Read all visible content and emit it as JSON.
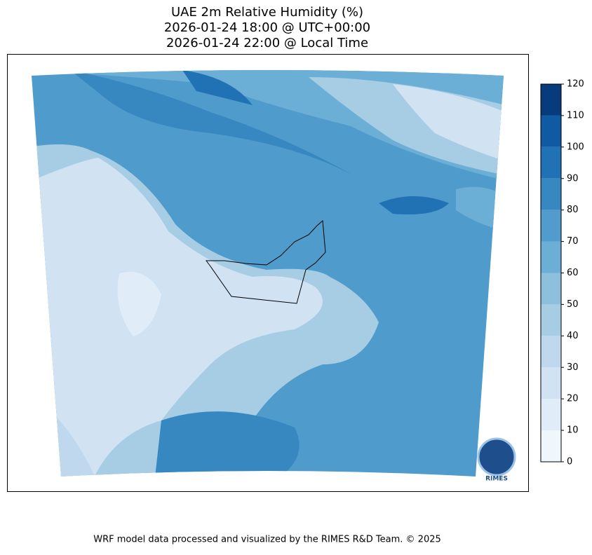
{
  "title": [
    "UAE 2m Relative Humidity (%)",
    "2026-01-24 18:00 @ UTC+00:00",
    "2026-01-24 22:00 @ Local Time"
  ],
  "colorbar": {
    "lim": [
      0,
      120
    ],
    "ticks": [
      0,
      10,
      20,
      30,
      40,
      50,
      60,
      70,
      80,
      90,
      100,
      110,
      120
    ],
    "colors": [
      "#eff6fc",
      "#e0ecf8",
      "#d1e2f3",
      "#bfd8ed",
      "#a6cde3",
      "#8cc0dd",
      "#6baed6",
      "#519ccc",
      "#3787c0",
      "#2171b5",
      "#0f5aa3",
      "#083b7c"
    ]
  },
  "logo": "RIMES",
  "footer": "WRF model data processed and visualized by the RIMES R&D Team. © 2025"
}
